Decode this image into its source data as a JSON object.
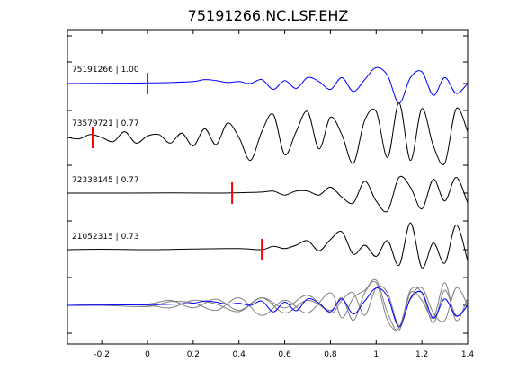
{
  "chart_data": {
    "type": "line",
    "title": "75191266.NC.LSF.EHZ",
    "xlabel": "",
    "ylabel": "",
    "xlim": [
      -0.35,
      1.4
    ],
    "x_ticks": [
      "-0.2",
      "0",
      "0.2",
      "0.4",
      "0.6",
      "0.8",
      "1",
      "1.2",
      "1.4"
    ],
    "x_tick_values": [
      -0.2,
      0,
      0.2,
      0.4,
      0.6,
      0.8,
      1.0,
      1.2,
      1.4
    ],
    "grid": false,
    "legend": "none",
    "colors": {
      "reference": "#0000ff",
      "match": "#000000",
      "stack": "#808080",
      "pick": "#ff0000"
    },
    "series": [
      {
        "name": "75191266 | 1.00",
        "color": "#0000ff",
        "pick_time": 0.0,
        "x": [
          -0.35,
          -0.1,
          0.0,
          0.1,
          0.2,
          0.25,
          0.3,
          0.35,
          0.4,
          0.45,
          0.5,
          0.55,
          0.6,
          0.65,
          0.7,
          0.75,
          0.8,
          0.85,
          0.9,
          0.95,
          1.0,
          1.05,
          1.1,
          1.15,
          1.2,
          1.25,
          1.3,
          1.35,
          1.4
        ],
        "y": [
          0.0,
          0.02,
          0.03,
          0.05,
          0.1,
          0.2,
          0.15,
          0.05,
          0.1,
          0.0,
          0.2,
          -0.3,
          0.15,
          -0.25,
          0.3,
          0.1,
          -0.3,
          0.3,
          -0.4,
          0.2,
          0.8,
          0.4,
          -1.0,
          0.3,
          0.6,
          -0.6,
          0.3,
          -0.5,
          0.0
        ]
      },
      {
        "name": "73579721 | 0.77",
        "color": "#000000",
        "pick_time": -0.24,
        "x": [
          -0.35,
          -0.3,
          -0.25,
          -0.2,
          -0.15,
          -0.1,
          -0.05,
          0.0,
          0.05,
          0.1,
          0.15,
          0.2,
          0.25,
          0.3,
          0.35,
          0.4,
          0.45,
          0.5,
          0.55,
          0.6,
          0.65,
          0.7,
          0.75,
          0.8,
          0.85,
          0.9,
          0.95,
          1.0,
          1.05,
          1.1,
          1.15,
          1.2,
          1.25,
          1.3,
          1.35,
          1.4
        ],
        "y": [
          0.0,
          -0.05,
          0.1,
          0.0,
          -0.15,
          0.2,
          -0.2,
          0.05,
          0.1,
          -0.2,
          0.15,
          -0.3,
          0.3,
          -0.25,
          0.5,
          0.0,
          -0.8,
          0.2,
          0.8,
          -0.6,
          0.2,
          0.9,
          -0.4,
          0.7,
          0.1,
          -0.9,
          0.6,
          0.9,
          -0.7,
          1.2,
          -0.8,
          1.0,
          -0.3,
          -0.9,
          1.0,
          0.2
        ]
      },
      {
        "name": "72338145 | 0.77",
        "color": "#000000",
        "pick_time": 0.37,
        "x": [
          -0.35,
          -0.1,
          0.1,
          0.3,
          0.4,
          0.5,
          0.55,
          0.6,
          0.65,
          0.7,
          0.75,
          0.8,
          0.85,
          0.9,
          0.95,
          1.0,
          1.05,
          1.1,
          1.15,
          1.2,
          1.25,
          1.3,
          1.35,
          1.4
        ],
        "y": [
          0.0,
          0.0,
          0.01,
          0.0,
          0.02,
          0.05,
          0.1,
          -0.1,
          0.1,
          0.1,
          -0.1,
          0.3,
          -0.2,
          -0.5,
          0.6,
          -0.4,
          -0.9,
          0.8,
          0.3,
          -0.8,
          0.7,
          -0.4,
          0.8,
          -0.5
        ]
      },
      {
        "name": "21052315 | 0.73",
        "color": "#000000",
        "pick_time": 0.5,
        "x": [
          -0.35,
          -0.2,
          0.0,
          0.2,
          0.4,
          0.5,
          0.55,
          0.6,
          0.65,
          0.7,
          0.75,
          0.8,
          0.85,
          0.9,
          0.95,
          1.0,
          1.05,
          1.1,
          1.15,
          1.2,
          1.25,
          1.3,
          1.35,
          1.4
        ],
        "y": [
          0.0,
          0.02,
          0.0,
          0.03,
          0.05,
          0.0,
          0.15,
          0.05,
          0.2,
          0.4,
          -0.05,
          0.45,
          0.8,
          -0.2,
          0.2,
          -0.3,
          0.4,
          -0.7,
          1.2,
          -0.8,
          0.3,
          -0.6,
          1.1,
          -0.5
        ]
      },
      {
        "name": "",
        "color": "#808080",
        "pick_time": null,
        "x": [
          -0.35,
          -0.2,
          0.0,
          0.1,
          0.2,
          0.3,
          0.4,
          0.5,
          0.6,
          0.7,
          0.8,
          0.85,
          0.9,
          0.95,
          1.0,
          1.05,
          1.1,
          1.15,
          1.2,
          1.25,
          1.3,
          1.35,
          1.4
        ],
        "y": [
          0.0,
          0.02,
          0.05,
          0.2,
          -0.1,
          0.25,
          -0.2,
          0.3,
          -0.3,
          0.2,
          -0.2,
          0.3,
          -0.6,
          0.5,
          0.9,
          -0.6,
          -0.9,
          0.6,
          0.5,
          -0.7,
          0.6,
          -0.4,
          0.0
        ]
      },
      {
        "name": "",
        "color": "#808080",
        "pick_time": null,
        "x": [
          -0.35,
          -0.2,
          0.0,
          0.1,
          0.2,
          0.3,
          0.4,
          0.5,
          0.6,
          0.7,
          0.8,
          0.85,
          0.9,
          0.95,
          1.0,
          1.05,
          1.1,
          1.15,
          1.2,
          1.25,
          1.3,
          1.35,
          1.4
        ],
        "y": [
          0.0,
          0.0,
          -0.05,
          0.15,
          0.1,
          -0.2,
          0.3,
          -0.4,
          0.2,
          -0.3,
          0.5,
          -0.5,
          0.3,
          0.6,
          1.0,
          -0.3,
          -1.0,
          0.5,
          0.2,
          -0.5,
          0.9,
          -0.6,
          0.3
        ]
      },
      {
        "name": "",
        "color": "#808080",
        "pick_time": null,
        "x": [
          -0.35,
          -0.2,
          0.0,
          0.1,
          0.2,
          0.3,
          0.4,
          0.5,
          0.6,
          0.7,
          0.8,
          0.85,
          0.9,
          0.95,
          1.0,
          1.05,
          1.1,
          1.15,
          1.2,
          1.25,
          1.3,
          1.35,
          1.4
        ],
        "y": [
          0.0,
          0.03,
          0.0,
          -0.1,
          0.2,
          0.05,
          -0.25,
          0.3,
          -0.1,
          0.4,
          -0.3,
          0.2,
          0.5,
          -0.4,
          0.7,
          0.5,
          -0.8,
          0.3,
          0.7,
          -0.3,
          -0.6,
          0.7,
          0.0
        ]
      },
      {
        "name": "",
        "color": "#0000ff",
        "pick_time": null,
        "x": [
          -0.35,
          -0.1,
          0.0,
          0.1,
          0.2,
          0.25,
          0.3,
          0.35,
          0.4,
          0.45,
          0.5,
          0.55,
          0.6,
          0.65,
          0.7,
          0.75,
          0.8,
          0.85,
          0.9,
          0.95,
          1.0,
          1.05,
          1.1,
          1.15,
          1.2,
          1.25,
          1.3,
          1.35,
          1.4
        ],
        "y": [
          0.0,
          0.02,
          0.03,
          0.05,
          0.1,
          0.2,
          0.15,
          0.05,
          0.1,
          0.0,
          0.2,
          -0.3,
          0.15,
          -0.25,
          0.3,
          0.1,
          -0.3,
          0.3,
          -0.4,
          0.2,
          0.8,
          0.4,
          -1.0,
          0.3,
          0.6,
          -0.6,
          0.3,
          -0.5,
          0.0
        ]
      }
    ],
    "annotations": [
      "75191266 | 1.00",
      "73579721 | 0.77",
      "72338145 | 0.77",
      "21052315 | 0.73"
    ]
  }
}
